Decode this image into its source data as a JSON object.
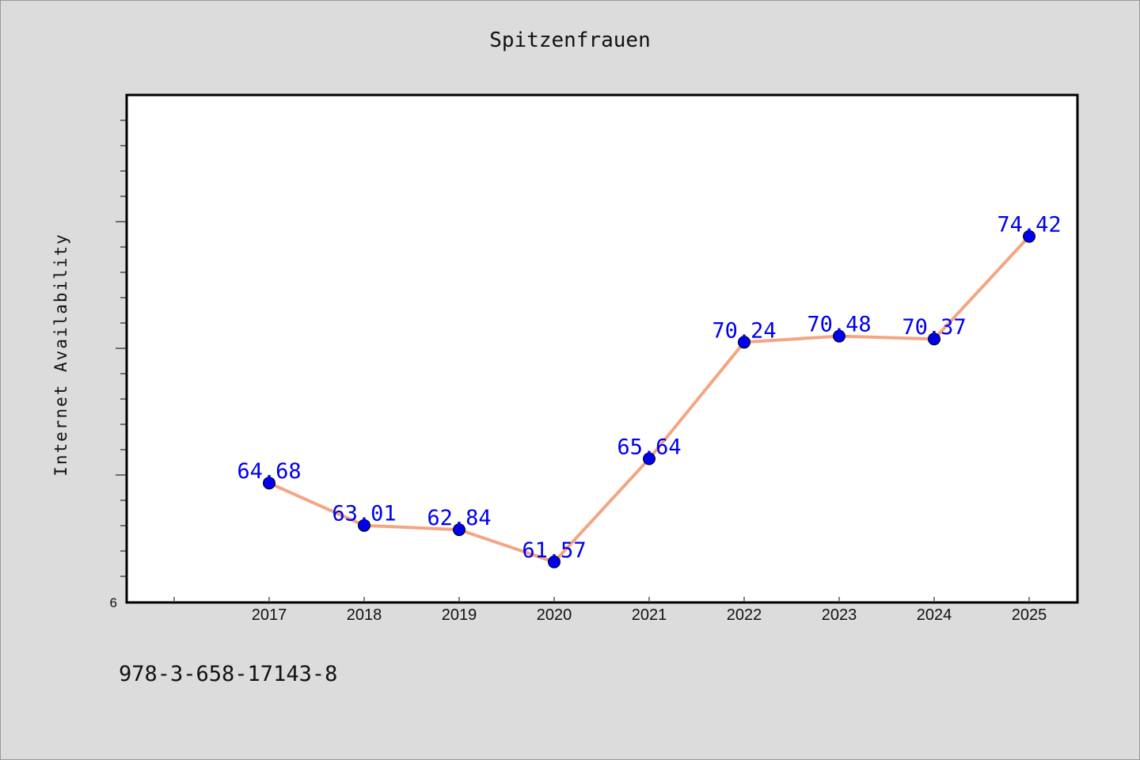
{
  "chart_data": {
    "type": "line",
    "title": "Spitzenfrauen",
    "xlabel": "",
    "ylabel": "Internet Availability",
    "x": [
      "2017",
      "2018",
      "2019",
      "2020",
      "2021",
      "2022",
      "2023",
      "2024",
      "2025"
    ],
    "series": [
      {
        "values": [
          64.68,
          63.01,
          62.84,
          61.57,
          65.64,
          70.24,
          70.48,
          70.37,
          74.42
        ],
        "line_color": "#f4a582",
        "marker_color": "#0000ee"
      }
    ],
    "data_labels": [
      "64.68",
      "63.01",
      "62.84",
      "61.57",
      "65.64",
      "70.24",
      "70.48",
      "70.37",
      "74.42"
    ],
    "y_tick_label": "6",
    "ylim": [
      60,
      80
    ],
    "grid": false,
    "legend": "none"
  },
  "footer_text": "978-3-658-17143-8"
}
